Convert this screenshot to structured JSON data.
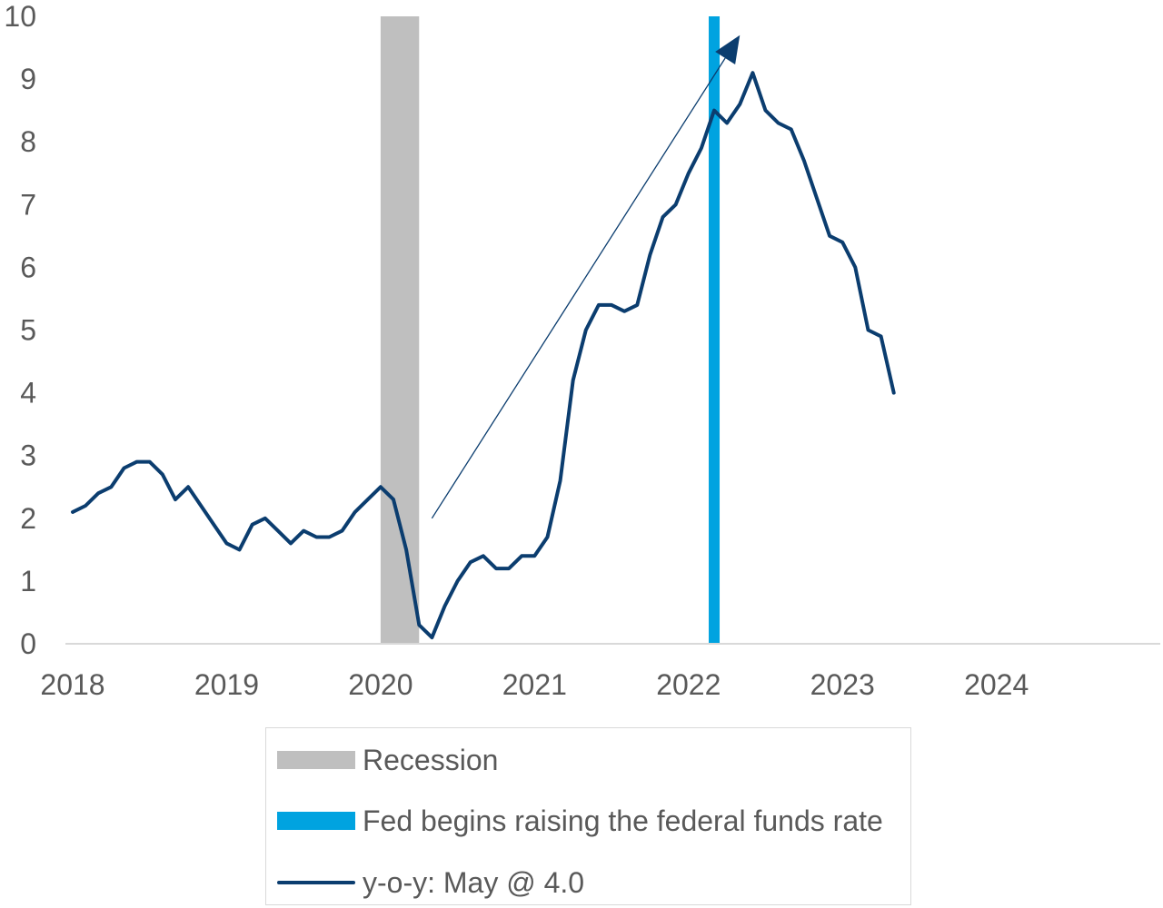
{
  "chart_data": {
    "type": "line",
    "title": "",
    "xlabel": "",
    "ylabel": "",
    "ylim": [
      0,
      10
    ],
    "yticks": [
      "0",
      "1",
      "2",
      "3",
      "4",
      "5",
      "6",
      "7",
      "8",
      "9",
      "10"
    ],
    "xlim": [
      "2018-01",
      "2024-12"
    ],
    "xticks": [
      "2018",
      "2019",
      "2020",
      "2021",
      "2022",
      "2023",
      "2024"
    ],
    "grid": false,
    "legend_position": "bottom",
    "series": [
      {
        "name": "y-o-y: May @ 4.0",
        "color": "#0b3d6f",
        "points": [
          [
            "2018-01",
            2.1
          ],
          [
            "2018-02",
            2.2
          ],
          [
            "2018-03",
            2.4
          ],
          [
            "2018-04",
            2.5
          ],
          [
            "2018-05",
            2.8
          ],
          [
            "2018-06",
            2.9
          ],
          [
            "2018-07",
            2.9
          ],
          [
            "2018-08",
            2.7
          ],
          [
            "2018-09",
            2.3
          ],
          [
            "2018-10",
            2.5
          ],
          [
            "2018-11",
            2.2
          ],
          [
            "2018-12",
            1.9
          ],
          [
            "2019-01",
            1.6
          ],
          [
            "2019-02",
            1.5
          ],
          [
            "2019-03",
            1.9
          ],
          [
            "2019-04",
            2.0
          ],
          [
            "2019-05",
            1.8
          ],
          [
            "2019-06",
            1.6
          ],
          [
            "2019-07",
            1.8
          ],
          [
            "2019-08",
            1.7
          ],
          [
            "2019-09",
            1.7
          ],
          [
            "2019-10",
            1.8
          ],
          [
            "2019-11",
            2.1
          ],
          [
            "2019-12",
            2.3
          ],
          [
            "2020-01",
            2.5
          ],
          [
            "2020-02",
            2.3
          ],
          [
            "2020-03",
            1.5
          ],
          [
            "2020-04",
            0.3
          ],
          [
            "2020-05",
            0.1
          ],
          [
            "2020-06",
            0.6
          ],
          [
            "2020-07",
            1.0
          ],
          [
            "2020-08",
            1.3
          ],
          [
            "2020-09",
            1.4
          ],
          [
            "2020-10",
            1.2
          ],
          [
            "2020-11",
            1.2
          ],
          [
            "2020-12",
            1.4
          ],
          [
            "2021-01",
            1.4
          ],
          [
            "2021-02",
            1.7
          ],
          [
            "2021-03",
            2.6
          ],
          [
            "2021-04",
            4.2
          ],
          [
            "2021-05",
            5.0
          ],
          [
            "2021-06",
            5.4
          ],
          [
            "2021-07",
            5.4
          ],
          [
            "2021-08",
            5.3
          ],
          [
            "2021-09",
            5.4
          ],
          [
            "2021-10",
            6.2
          ],
          [
            "2021-11",
            6.8
          ],
          [
            "2021-12",
            7.0
          ],
          [
            "2022-01",
            7.5
          ],
          [
            "2022-02",
            7.9
          ],
          [
            "2022-03",
            8.5
          ],
          [
            "2022-04",
            8.3
          ],
          [
            "2022-05",
            8.6
          ],
          [
            "2022-06",
            9.1
          ],
          [
            "2022-07",
            8.5
          ],
          [
            "2022-08",
            8.3
          ],
          [
            "2022-09",
            8.2
          ],
          [
            "2022-10",
            7.7
          ],
          [
            "2022-11",
            7.1
          ],
          [
            "2022-12",
            6.5
          ],
          [
            "2023-01",
            6.4
          ],
          [
            "2023-02",
            6.0
          ],
          [
            "2023-03",
            5.0
          ],
          [
            "2023-04",
            4.9
          ],
          [
            "2023-05",
            4.0
          ]
        ]
      }
    ],
    "shaded_periods": [
      {
        "name": "Recession",
        "start": "2020-01",
        "end": "2020-04",
        "color": "#bfbfbf"
      },
      {
        "name": "Fed begins raising the federal funds rate",
        "start": "2022-03",
        "end": "2022-03",
        "color": "#00a3e0"
      }
    ],
    "annotations": [
      {
        "type": "arrow",
        "from": [
          "2020-05",
          2.0
        ],
        "to": [
          "2022-05",
          9.7
        ],
        "color": "#0b3d6f"
      }
    ]
  },
  "legend": {
    "items": [
      {
        "label": "Recession",
        "kind": "bar",
        "color": "#bfbfbf"
      },
      {
        "label": "Fed begins raising the federal funds rate",
        "kind": "bar",
        "color": "#00a3e0"
      },
      {
        "label": "y-o-y: May @ 4.0",
        "kind": "line",
        "color": "#0b3d6f"
      }
    ]
  }
}
